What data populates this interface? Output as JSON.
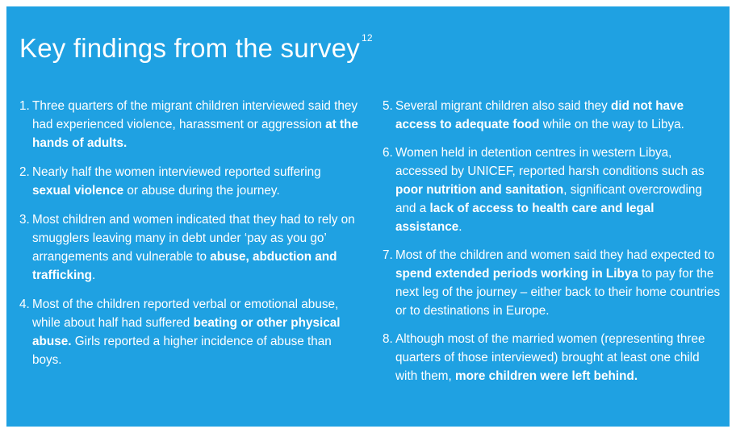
{
  "colors": {
    "background": "#1fa1e2",
    "text": "#ffffff"
  },
  "title": {
    "text": "Key findings from the survey",
    "footnote": "12"
  },
  "findings": [
    {
      "number": "1.",
      "parts": [
        {
          "text": "Three quarters of the migrant children interviewed said they had experienced violence, harassment or aggression ",
          "bold": false
        },
        {
          "text": "at the hands of adults.",
          "bold": true
        }
      ]
    },
    {
      "number": "2.",
      "parts": [
        {
          "text": "Nearly half the women interviewed reported suffering ",
          "bold": false
        },
        {
          "text": "sexual violence",
          "bold": true
        },
        {
          "text": " or abuse during the journey.",
          "bold": false
        }
      ]
    },
    {
      "number": "3.",
      "parts": [
        {
          "text": "Most children and women indicated that they had to rely on smugglers leaving many in debt under ‘pay as you go’ arrangements and vulnerable to ",
          "bold": false
        },
        {
          "text": "abuse, abduction and trafficking",
          "bold": true
        },
        {
          "text": ".",
          "bold": false
        }
      ]
    },
    {
      "number": "4.",
      "parts": [
        {
          "text": "Most of the children reported verbal or emotional abuse, while about half had suffered ",
          "bold": false
        },
        {
          "text": "beating or other physical abuse.",
          "bold": true
        },
        {
          "text": " Girls reported a higher incidence of abuse than boys.",
          "bold": false
        }
      ]
    },
    {
      "number": "5.",
      "parts": [
        {
          "text": "Several migrant children also said they ",
          "bold": false
        },
        {
          "text": "did not have access to adequate food",
          "bold": true
        },
        {
          "text": " while on the way to Libya.",
          "bold": false
        }
      ]
    },
    {
      "number": "6.",
      "parts": [
        {
          "text": "Women held in detention centres in western Libya, accessed by UNICEF, reported harsh conditions such as ",
          "bold": false
        },
        {
          "text": "poor nutrition and sanitation",
          "bold": true
        },
        {
          "text": ", significant overcrowding and a ",
          "bold": false
        },
        {
          "text": "lack of access to health care and legal assistance",
          "bold": true
        },
        {
          "text": ".",
          "bold": false
        }
      ]
    },
    {
      "number": "7.",
      "parts": [
        {
          "text": "Most of the children and women said they had expected to ",
          "bold": false
        },
        {
          "text": "spend extended periods working in Libya",
          "bold": true
        },
        {
          "text": " to pay for the next leg of the journey – either back to their home countries or to destinations in Europe.",
          "bold": false
        }
      ]
    },
    {
      "number": "8.",
      "parts": [
        {
          "text": "Although most of the married women (representing three quarters of those interviewed) brought at least one child with them, ",
          "bold": false
        },
        {
          "text": "more children were left behind.",
          "bold": true
        }
      ]
    }
  ]
}
